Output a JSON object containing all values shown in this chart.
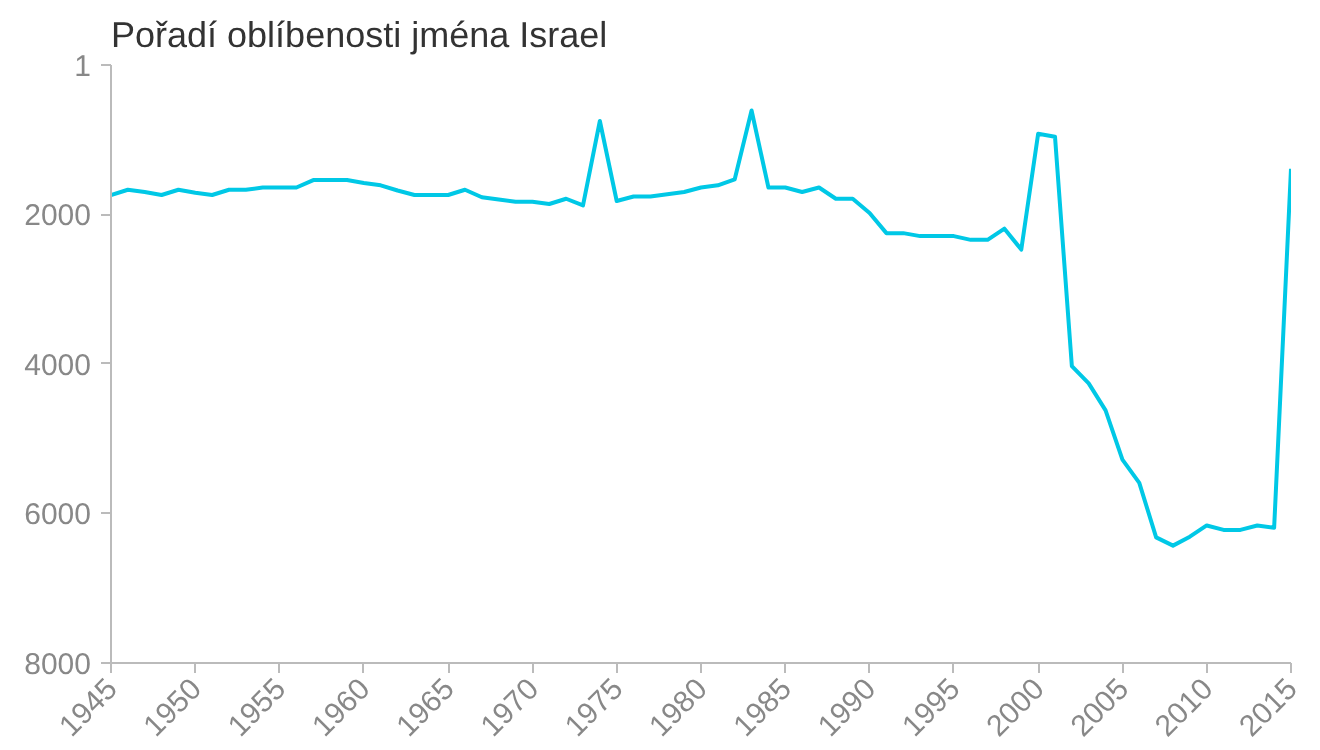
{
  "chart_data": {
    "type": "line",
    "title": "Pořadí oblíbenosti jména Israel",
    "x": [
      1945,
      1946,
      1947,
      1948,
      1949,
      1950,
      1951,
      1952,
      1953,
      1954,
      1955,
      1956,
      1957,
      1958,
      1959,
      1960,
      1961,
      1962,
      1963,
      1964,
      1965,
      1966,
      1967,
      1968,
      1969,
      1970,
      1971,
      1972,
      1973,
      1974,
      1975,
      1976,
      1977,
      1978,
      1979,
      1980,
      1981,
      1982,
      1983,
      1984,
      1985,
      1986,
      1987,
      1988,
      1989,
      1990,
      1991,
      1992,
      1993,
      1994,
      1995,
      1996,
      1997,
      1998,
      1999,
      2000,
      2001,
      2002,
      2003,
      2004,
      2005,
      2006,
      2007,
      2008,
      2009,
      2010,
      2011,
      2012,
      2013,
      2014,
      2015
    ],
    "series": [
      {
        "color": "#00c8e6",
        "values": [
          1740,
          1670,
          1700,
          1740,
          1670,
          1710,
          1740,
          1670,
          1670,
          1640,
          1640,
          1640,
          1540,
          1540,
          1540,
          1580,
          1610,
          1680,
          1740,
          1740,
          1740,
          1670,
          1770,
          1800,
          1830,
          1830,
          1860,
          1790,
          1880,
          750,
          1820,
          1760,
          1760,
          1730,
          1700,
          1640,
          1610,
          1530,
          610,
          1640,
          1640,
          1700,
          1640,
          1790,
          1790,
          1980,
          2250,
          2250,
          2290,
          2290,
          2290,
          2340,
          2340,
          2190,
          2470,
          920,
          960,
          4030,
          4260,
          4620,
          5280,
          5590,
          6320,
          6430,
          6310,
          6160,
          6220,
          6220,
          6160,
          6190,
          1390
        ]
      }
    ],
    "xlim": [
      1945,
      2015
    ],
    "xticks": [
      1945,
      1950,
      1955,
      1960,
      1965,
      1970,
      1975,
      1980,
      1985,
      1990,
      1995,
      2000,
      2005,
      2010,
      2015
    ],
    "ylim": [
      8000,
      1
    ],
    "yticks": [
      1,
      2000,
      4000,
      6000,
      8000
    ],
    "grid": false,
    "marker": "none",
    "line_style": "solid"
  }
}
